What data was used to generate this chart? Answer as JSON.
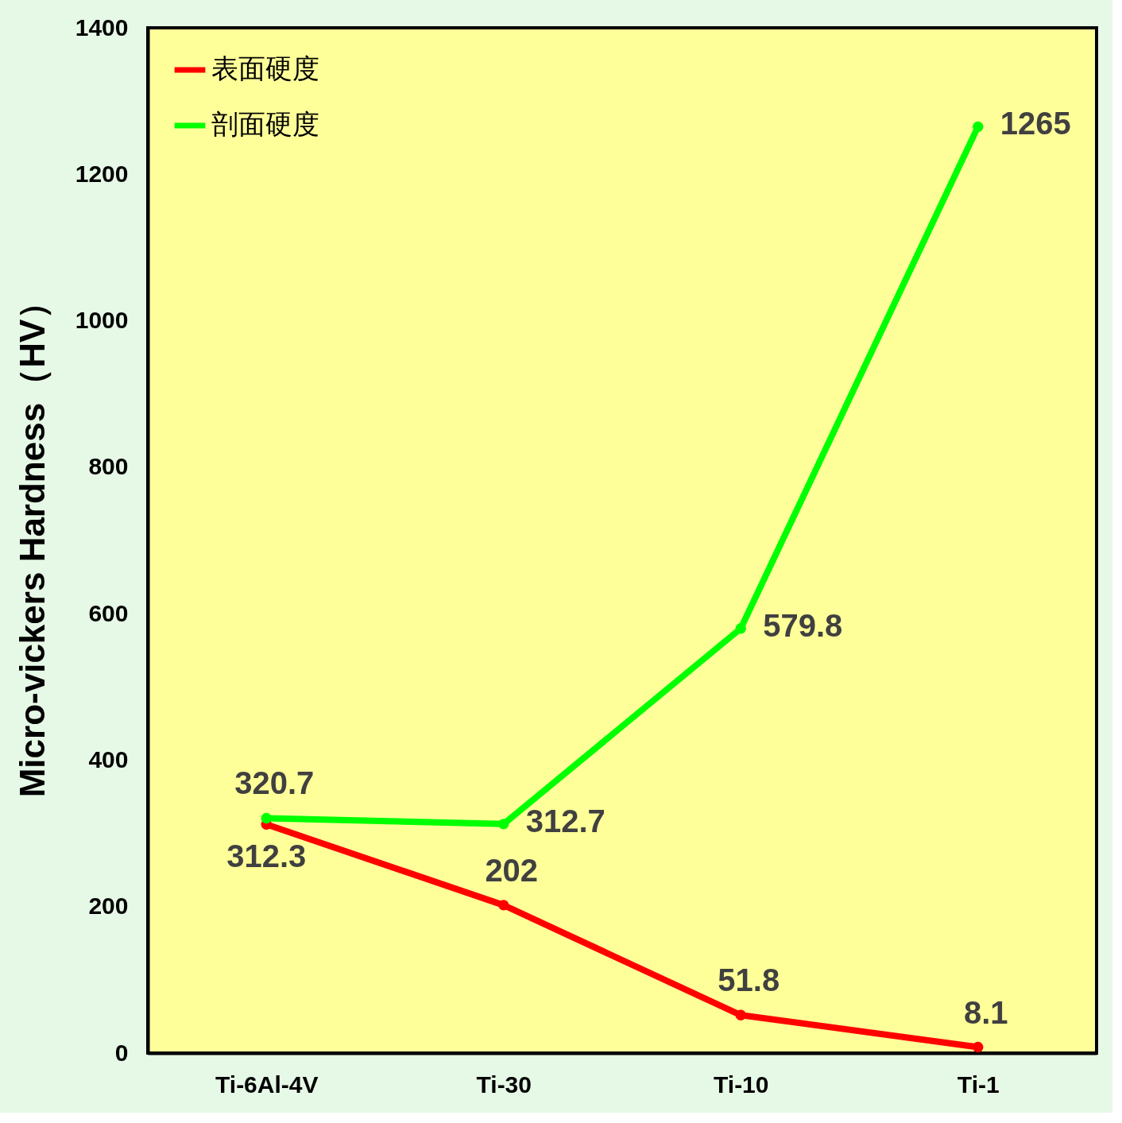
{
  "chart_data": {
    "type": "line",
    "ylabel": "Micro-vickers Hardness（HV）",
    "categories": [
      "Ti-6Al-4V",
      "Ti-30",
      "Ti-10",
      "Ti-1"
    ],
    "series": [
      {
        "name": "表面硬度",
        "color": "#ff0000",
        "values": [
          312.3,
          202,
          51.8,
          8.1
        ]
      },
      {
        "name": "剖面硬度",
        "color": "#00ff00",
        "values": [
          320.7,
          312.7,
          579.8,
          1265
        ]
      }
    ],
    "ylim": [
      0,
      1400
    ],
    "yticks": [
      0,
      200,
      400,
      600,
      800,
      1000,
      1200,
      1400
    ],
    "grid": false,
    "legend": "top left",
    "marker": "circle",
    "line_style": "solid",
    "data_labels": true
  }
}
